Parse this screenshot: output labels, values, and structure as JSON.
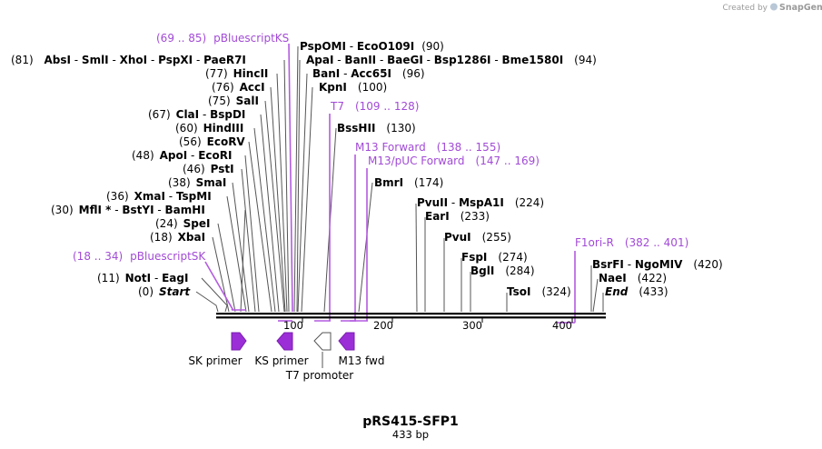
{
  "branding": {
    "created_by": "Created by",
    "brand": "SnapGene"
  },
  "map": {
    "title": "pRS415-SFP1",
    "length_label": "433 bp",
    "ticks": [
      "100",
      "200",
      "300",
      "400"
    ]
  },
  "colors": {
    "primer": "#a24bd6",
    "primer_line": "#b35ce0",
    "feature": "#9b2ed6",
    "promoter": "#ffffff"
  },
  "left_sites": [
    {
      "pos": "(81)",
      "names": [
        "AbsI",
        "SmlI",
        "XhoI",
        "PspXI",
        "PaeR7I"
      ]
    },
    {
      "pos": "(77)",
      "names": [
        "HincII"
      ]
    },
    {
      "pos": "(76)",
      "names": [
        "AccI"
      ]
    },
    {
      "pos": "(75)",
      "names": [
        "SalI"
      ]
    },
    {
      "pos": "(67)",
      "names": [
        "ClaI",
        "BspDI"
      ]
    },
    {
      "pos": "(60)",
      "names": [
        "HindIII"
      ]
    },
    {
      "pos": "(56)",
      "names": [
        "EcoRV"
      ]
    },
    {
      "pos": "(48)",
      "names": [
        "ApoI",
        "EcoRI"
      ]
    },
    {
      "pos": "(46)",
      "names": [
        "PstI"
      ]
    },
    {
      "pos": "(38)",
      "names": [
        "SmaI"
      ]
    },
    {
      "pos": "(36)",
      "names": [
        "XmaI",
        "TspMI"
      ]
    },
    {
      "pos": "(30)",
      "names": [
        "MflI *",
        "BstYI",
        "BamHI"
      ]
    },
    {
      "pos": "(24)",
      "names": [
        "SpeI"
      ]
    },
    {
      "pos": "(18)",
      "names": [
        "XbaI"
      ]
    },
    {
      "pos": "(11)",
      "names": [
        "NotI",
        "EagI"
      ]
    },
    {
      "pos": "(0)",
      "names": [
        "Start"
      ]
    }
  ],
  "right_sites": [
    {
      "names": [
        "PspOMI",
        "EcoO109I"
      ],
      "pos": "(90)"
    },
    {
      "names": [
        "BaeGI",
        "Bsp1286I",
        "Bme1580I"
      ],
      "pos": "(94)"
    },
    {
      "names": [
        "ApaI",
        "BanII"
      ],
      "pos": ""
    },
    {
      "names": [
        "BanI",
        "Acc65I"
      ],
      "pos": "(96)"
    },
    {
      "names": [
        "KpnI"
      ],
      "pos": "(100)"
    },
    {
      "names": [
        "BssHII"
      ],
      "pos": "(130)"
    },
    {
      "names": [
        "BmrI"
      ],
      "pos": "(174)"
    },
    {
      "names": [
        "PvuII",
        "MspA1I"
      ],
      "pos": "(224)"
    },
    {
      "names": [
        "EarI"
      ],
      "pos": "(233)"
    },
    {
      "names": [
        "PvuI"
      ],
      "pos": "(255)"
    },
    {
      "names": [
        "FspI"
      ],
      "pos": "(274)"
    },
    {
      "names": [
        "BglI"
      ],
      "pos": "(284)"
    },
    {
      "names": [
        "TsoI"
      ],
      "pos": "(324)"
    },
    {
      "names": [
        "BsrFI",
        "NgoMIV"
      ],
      "pos": "(420)"
    },
    {
      "names": [
        "NaeI"
      ],
      "pos": "(422)"
    },
    {
      "names": [
        "End"
      ],
      "pos": "(433)"
    }
  ],
  "primers": [
    {
      "name": "pBluescriptKS",
      "range": "(69 .. 85)"
    },
    {
      "name": "T7",
      "range": "(109 .. 128)"
    },
    {
      "name": "M13 Forward",
      "range": "(138 .. 155)"
    },
    {
      "name": "M13/pUC Forward",
      "range": "(147 .. 169)"
    },
    {
      "name": "pBluescriptSK",
      "range": "(18 .. 34)"
    },
    {
      "name": "F1ori-R",
      "range": "(382 .. 401)"
    }
  ],
  "features": [
    {
      "name": "SK primer",
      "direction": "forward"
    },
    {
      "name": "KS primer",
      "direction": "reverse"
    },
    {
      "name": "T7 promoter",
      "direction": "reverse"
    },
    {
      "name": "M13 fwd",
      "direction": "reverse"
    }
  ]
}
